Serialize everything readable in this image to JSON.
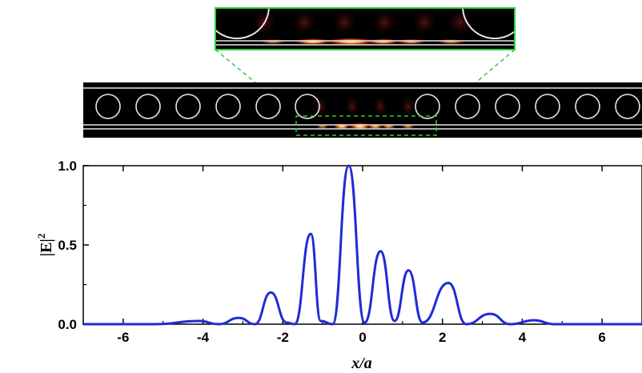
{
  "chart_data": {
    "type": "line",
    "title": "",
    "xlabel": "x/a",
    "ylabel": "|E|",
    "ylabel_superscript": "2",
    "xlim": [
      -7,
      7
    ],
    "ylim": [
      0,
      1.0
    ],
    "x_ticks": [
      -6,
      -4,
      -2,
      0,
      2,
      4,
      6
    ],
    "x_tick_labels": [
      "-6",
      "-4",
      "-2",
      "0",
      "2",
      "4",
      "6"
    ],
    "y_ticks": [
      0,
      0.5,
      1.0
    ],
    "y_tick_labels": [
      "0.0",
      "0.5",
      "1.0"
    ],
    "grid": false,
    "line_color": "#1f2bd6",
    "series": [
      {
        "name": "",
        "x": [
          -7.0,
          -5.2,
          -4.1,
          -3.6,
          -3.1,
          -2.7,
          -2.3,
          -1.9,
          -1.7,
          -1.3,
          -1.05,
          -0.75,
          -0.35,
          0.05,
          0.45,
          0.8,
          1.15,
          1.5,
          2.15,
          2.6,
          3.2,
          3.7,
          4.3,
          4.8,
          7.0
        ],
        "y": [
          0.0,
          0.0,
          0.02,
          0.0,
          0.04,
          0.0,
          0.2,
          0.01,
          0.0,
          0.57,
          0.02,
          0.0,
          1.0,
          0.01,
          0.46,
          0.02,
          0.34,
          0.01,
          0.26,
          0.0,
          0.065,
          0.0,
          0.025,
          0.0,
          0.0
        ]
      }
    ]
  },
  "colors": {
    "field_glow": "#ffe9b0",
    "field_dim": "#5a0f0a",
    "inset_border": "#2ecc40",
    "slab": "#000000",
    "rods": "#e6e6e6"
  }
}
